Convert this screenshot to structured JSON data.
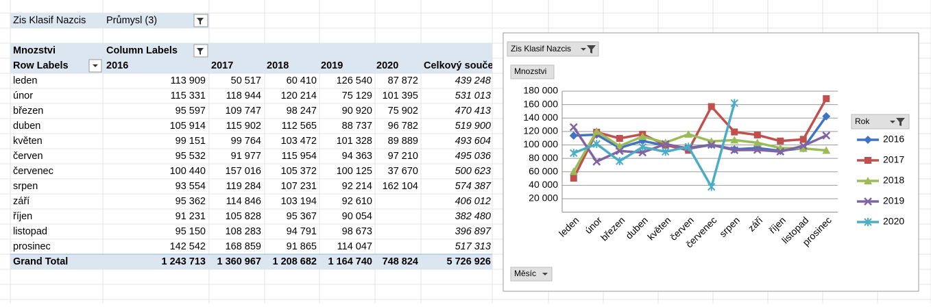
{
  "filter": {
    "label": "Zis Klasif Nazcis",
    "value": "Průmysl (3)"
  },
  "table": {
    "value_label": "Mnozstvi",
    "column_labels": "Column Labels",
    "row_labels": "Row Labels",
    "columns": [
      "2016",
      "2017",
      "2018",
      "2019",
      "2020",
      "Celkový součet"
    ],
    "rows": [
      [
        "leden",
        "113 909",
        "50 517",
        "60 410",
        "126 540",
        "87 872",
        "439 248"
      ],
      [
        "únor",
        "115 331",
        "118 944",
        "120 214",
        "75 129",
        "101 395",
        "531 013"
      ],
      [
        "březen",
        "95 597",
        "109 747",
        "98 247",
        "90 920",
        "75 902",
        "470 413"
      ],
      [
        "duben",
        "105 914",
        "115 902",
        "112 565",
        "88 737",
        "96 782",
        "519 900"
      ],
      [
        "květen",
        "99 151",
        "99 764",
        "103 472",
        "101 328",
        "89 889",
        "493 604"
      ],
      [
        "červen",
        "95 532",
        "91 977",
        "115 954",
        "94 363",
        "97 210",
        "495 036"
      ],
      [
        "červenec",
        "100 440",
        "157 016",
        "105 372",
        "100 125",
        "37 670",
        "500 623"
      ],
      [
        "srpen",
        "93 554",
        "119 284",
        "107 231",
        "92 214",
        "162 104",
        "574 387"
      ],
      [
        "září",
        "95 362",
        "114 846",
        "103 194",
        "92 610",
        null,
        "406 012"
      ],
      [
        "říjen",
        "91 231",
        "105 828",
        "95 367",
        "90 054",
        null,
        "382 480"
      ],
      [
        "listopad",
        "95 150",
        "108 283",
        "94 791",
        "98 673",
        null,
        "396 897"
      ],
      [
        "prosinec",
        "142 542",
        "168 859",
        "91 865",
        "114 047",
        null,
        "517 313"
      ]
    ],
    "grand_total": [
      "Grand Total",
      "1 243 713",
      "1 360 967",
      "1 208 682",
      "1 164 740",
      "748 824",
      "5 726 926"
    ]
  },
  "chart_data": {
    "type": "line",
    "filter_button": "Zis Klasif Nazcis",
    "value_button": "Mnozstvi",
    "axis_button": "Měsíc",
    "legend_title": "Rok",
    "categories": [
      "leden",
      "únor",
      "březen",
      "duben",
      "květen",
      "červen",
      "červenec",
      "srpen",
      "září",
      "říjen",
      "listopad",
      "prosinec"
    ],
    "series": [
      {
        "name": "2016",
        "color": "#3f74c4",
        "marker": "diamond",
        "values": [
          113909,
          115331,
          95597,
          105914,
          99151,
          95532,
          100440,
          93554,
          95362,
          91231,
          95150,
          142542
        ]
      },
      {
        "name": "2017",
        "color": "#c0504d",
        "marker": "square",
        "values": [
          50517,
          118944,
          109747,
          115902,
          99764,
          91977,
          157016,
          119284,
          114846,
          105828,
          108283,
          168859
        ]
      },
      {
        "name": "2018",
        "color": "#9bbb59",
        "marker": "triangle",
        "values": [
          60410,
          120214,
          98247,
          112565,
          103472,
          115954,
          105372,
          107231,
          103194,
          95367,
          94791,
          91865
        ]
      },
      {
        "name": "2019",
        "color": "#8064a2",
        "marker": "x",
        "values": [
          126540,
          75129,
          90920,
          88737,
          101328,
          94363,
          100125,
          92214,
          92610,
          90054,
          98673,
          114047
        ]
      },
      {
        "name": "2020",
        "color": "#4bacc6",
        "marker": "star",
        "values": [
          87872,
          101395,
          75902,
          96782,
          89889,
          97210,
          37670,
          162104,
          null,
          null,
          null,
          null
        ]
      }
    ],
    "ylim": [
      0,
      180000
    ],
    "yticks": [
      {
        "value": 20000,
        "label": "20 000"
      },
      {
        "value": 40000,
        "label": "40 000"
      },
      {
        "value": 60000,
        "label": "60 000"
      },
      {
        "value": 80000,
        "label": "80 000"
      },
      {
        "value": 100000,
        "label": "100 000"
      },
      {
        "value": 120000,
        "label": "120 000"
      },
      {
        "value": 140000,
        "label": "140 000"
      },
      {
        "value": 160000,
        "label": "160 000"
      },
      {
        "value": 180000,
        "label": "180 000"
      }
    ],
    "grid": true,
    "legend": "right"
  }
}
